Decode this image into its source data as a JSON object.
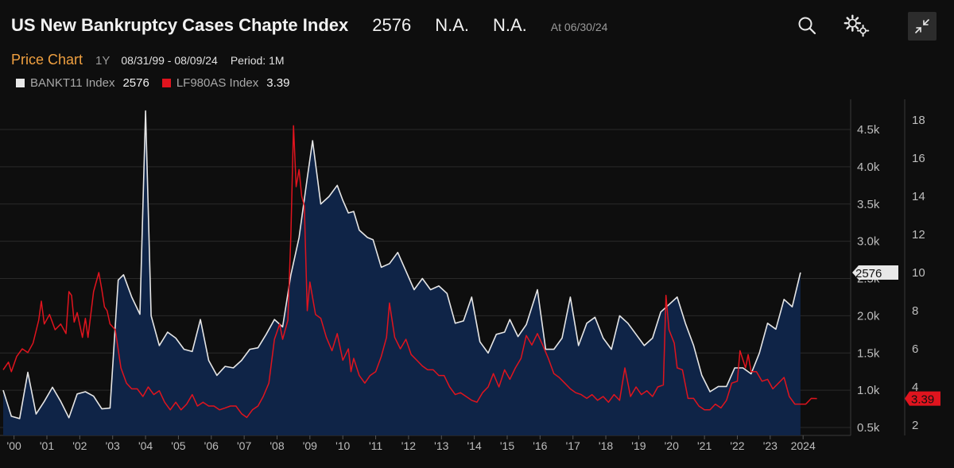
{
  "header": {
    "title": "US New Bankruptcy Cases Chapte Index",
    "last_value": "2576",
    "change1": "N.A.",
    "change2": "N.A.",
    "as_of": "At 06/30/24"
  },
  "toolbar": {
    "chart_type": "Price Chart",
    "period_button": "1Y",
    "date_range": "08/31/99 - 08/09/24",
    "period": "Period: 1M"
  },
  "legend": [
    {
      "name": "BANKT11 Index",
      "value": "2576",
      "color": "#e8e8e8"
    },
    {
      "name": "LF980AS Index",
      "value": "3.39",
      "color": "#e0141e"
    }
  ],
  "colors": {
    "area_fill": "#0f2447",
    "primary_line": "#e6e6e6",
    "secondary_line": "#e0141e",
    "grid": "#2a2a2a",
    "background": "#0e0e0e"
  },
  "chart_data": {
    "type": "line",
    "title": "US New Bankruptcy Cases Chapte Index",
    "x_ticks": [
      "'00",
      "'01",
      "'02",
      "'03",
      "'04",
      "'05",
      "'06",
      "'07",
      "'08",
      "'09",
      "'10",
      "'11",
      "'12",
      "'13",
      "'14",
      "'15",
      "'16",
      "'17",
      "'18",
      "'19",
      "'20",
      "'21",
      "'22",
      "'23",
      "2024"
    ],
    "x_tick_years": [
      2000,
      2001,
      2002,
      2003,
      2004,
      2005,
      2006,
      2007,
      2008,
      2009,
      2010,
      2011,
      2012,
      2013,
      2014,
      2015,
      2016,
      2017,
      2018,
      2019,
      2020,
      2021,
      2022,
      2023,
      2024
    ],
    "xlim": [
      1999.67,
      2024.6
    ],
    "y_left": {
      "ticks": [
        0.5,
        1.0,
        1.5,
        2.0,
        2.5,
        3.0,
        3.5,
        4.0,
        4.5
      ],
      "tick_labels": [
        "0.5k",
        "1.0k",
        "1.5k",
        "2.0k",
        "2.5k",
        "3.0k",
        "3.5k",
        "4.0k",
        "4.5k"
      ],
      "ylim": [
        0.45,
        4.85
      ],
      "unit": "thousands"
    },
    "y_right": {
      "ticks": [
        2,
        4,
        6,
        8,
        10,
        12,
        14,
        16,
        18
      ],
      "ylim": [
        1.8,
        18.9
      ]
    },
    "last_labels": {
      "primary": "2576",
      "secondary": "3.39"
    },
    "series": [
      {
        "name": "BANKT11 Index",
        "axis": "left",
        "style": "area",
        "points": [
          [
            1999.67,
            1.0
          ],
          [
            1999.92,
            0.65
          ],
          [
            2000.17,
            0.62
          ],
          [
            2000.42,
            1.24
          ],
          [
            2000.67,
            0.68
          ],
          [
            2000.92,
            0.85
          ],
          [
            2001.17,
            1.04
          ],
          [
            2001.42,
            0.85
          ],
          [
            2001.67,
            0.63
          ],
          [
            2001.92,
            0.95
          ],
          [
            2002.17,
            0.98
          ],
          [
            2002.42,
            0.92
          ],
          [
            2002.67,
            0.75
          ],
          [
            2002.92,
            0.76
          ],
          [
            2003.17,
            2.48
          ],
          [
            2003.33,
            2.55
          ],
          [
            2003.58,
            2.25
          ],
          [
            2003.83,
            2.02
          ],
          [
            2004.0,
            4.75
          ],
          [
            2004.17,
            2.0
          ],
          [
            2004.42,
            1.6
          ],
          [
            2004.67,
            1.78
          ],
          [
            2004.92,
            1.7
          ],
          [
            2005.17,
            1.55
          ],
          [
            2005.42,
            1.52
          ],
          [
            2005.67,
            1.95
          ],
          [
            2005.92,
            1.4
          ],
          [
            2006.17,
            1.2
          ],
          [
            2006.42,
            1.32
          ],
          [
            2006.67,
            1.3
          ],
          [
            2006.92,
            1.4
          ],
          [
            2007.17,
            1.55
          ],
          [
            2007.42,
            1.57
          ],
          [
            2007.67,
            1.75
          ],
          [
            2007.92,
            1.95
          ],
          [
            2008.17,
            1.85
          ],
          [
            2008.42,
            2.55
          ],
          [
            2008.67,
            3.05
          ],
          [
            2008.92,
            3.85
          ],
          [
            2009.08,
            4.35
          ],
          [
            2009.33,
            3.5
          ],
          [
            2009.58,
            3.6
          ],
          [
            2009.83,
            3.75
          ],
          [
            2010.0,
            3.55
          ],
          [
            2010.17,
            3.38
          ],
          [
            2010.33,
            3.4
          ],
          [
            2010.5,
            3.15
          ],
          [
            2010.75,
            3.05
          ],
          [
            2010.92,
            3.02
          ],
          [
            2011.17,
            2.65
          ],
          [
            2011.42,
            2.7
          ],
          [
            2011.67,
            2.85
          ],
          [
            2011.92,
            2.6
          ],
          [
            2012.17,
            2.35
          ],
          [
            2012.42,
            2.5
          ],
          [
            2012.67,
            2.35
          ],
          [
            2012.92,
            2.4
          ],
          [
            2013.17,
            2.3
          ],
          [
            2013.42,
            1.9
          ],
          [
            2013.67,
            1.93
          ],
          [
            2013.92,
            2.25
          ],
          [
            2014.17,
            1.65
          ],
          [
            2014.42,
            1.5
          ],
          [
            2014.67,
            1.75
          ],
          [
            2014.92,
            1.78
          ],
          [
            2015.08,
            1.95
          ],
          [
            2015.33,
            1.72
          ],
          [
            2015.58,
            1.88
          ],
          [
            2015.92,
            2.35
          ],
          [
            2016.17,
            1.55
          ],
          [
            2016.42,
            1.55
          ],
          [
            2016.67,
            1.7
          ],
          [
            2016.92,
            2.25
          ],
          [
            2017.17,
            1.6
          ],
          [
            2017.42,
            1.9
          ],
          [
            2017.67,
            1.98
          ],
          [
            2017.92,
            1.7
          ],
          [
            2018.17,
            1.55
          ],
          [
            2018.42,
            2.0
          ],
          [
            2018.67,
            1.9
          ],
          [
            2018.92,
            1.75
          ],
          [
            2019.17,
            1.6
          ],
          [
            2019.42,
            1.7
          ],
          [
            2019.67,
            2.05
          ],
          [
            2019.92,
            2.15
          ],
          [
            2020.17,
            2.25
          ],
          [
            2020.42,
            1.9
          ],
          [
            2020.67,
            1.6
          ],
          [
            2020.92,
            1.2
          ],
          [
            2021.17,
            0.98
          ],
          [
            2021.42,
            1.05
          ],
          [
            2021.67,
            1.05
          ],
          [
            2021.92,
            1.3
          ],
          [
            2022.17,
            1.3
          ],
          [
            2022.42,
            1.22
          ],
          [
            2022.67,
            1.5
          ],
          [
            2022.92,
            1.9
          ],
          [
            2023.17,
            1.82
          ],
          [
            2023.42,
            2.22
          ],
          [
            2023.67,
            2.12
          ],
          [
            2023.92,
            2.58
          ]
        ]
      },
      {
        "name": "LF980AS Index",
        "axis": "right",
        "style": "line",
        "points": [
          [
            1999.67,
            4.9
          ],
          [
            1999.83,
            5.3
          ],
          [
            1999.92,
            4.8
          ],
          [
            2000.08,
            5.6
          ],
          [
            2000.25,
            6.0
          ],
          [
            2000.42,
            5.8
          ],
          [
            2000.58,
            6.3
          ],
          [
            2000.75,
            7.5
          ],
          [
            2000.83,
            8.5
          ],
          [
            2000.92,
            7.3
          ],
          [
            2001.08,
            7.8
          ],
          [
            2001.25,
            7.0
          ],
          [
            2001.42,
            7.3
          ],
          [
            2001.58,
            6.8
          ],
          [
            2001.67,
            9.0
          ],
          [
            2001.75,
            8.8
          ],
          [
            2001.83,
            7.4
          ],
          [
            2001.92,
            7.9
          ],
          [
            2002.08,
            6.6
          ],
          [
            2002.17,
            7.6
          ],
          [
            2002.25,
            6.6
          ],
          [
            2002.42,
            9.0
          ],
          [
            2002.58,
            10.0
          ],
          [
            2002.67,
            9.1
          ],
          [
            2002.75,
            8.2
          ],
          [
            2002.83,
            8.0
          ],
          [
            2002.92,
            7.3
          ],
          [
            2003.08,
            7.0
          ],
          [
            2003.25,
            5.0
          ],
          [
            2003.42,
            4.2
          ],
          [
            2003.58,
            3.9
          ],
          [
            2003.75,
            3.9
          ],
          [
            2003.92,
            3.5
          ],
          [
            2004.08,
            4.0
          ],
          [
            2004.25,
            3.6
          ],
          [
            2004.42,
            3.8
          ],
          [
            2004.58,
            3.2
          ],
          [
            2004.75,
            2.8
          ],
          [
            2004.92,
            3.2
          ],
          [
            2005.08,
            2.8
          ],
          [
            2005.25,
            3.1
          ],
          [
            2005.42,
            3.6
          ],
          [
            2005.58,
            3.0
          ],
          [
            2005.75,
            3.2
          ],
          [
            2005.92,
            3.0
          ],
          [
            2006.08,
            3.0
          ],
          [
            2006.25,
            2.8
          ],
          [
            2006.42,
            2.9
          ],
          [
            2006.58,
            3.0
          ],
          [
            2006.75,
            3.0
          ],
          [
            2006.92,
            2.6
          ],
          [
            2007.08,
            2.4
          ],
          [
            2007.25,
            2.8
          ],
          [
            2007.42,
            3.0
          ],
          [
            2007.58,
            3.5
          ],
          [
            2007.75,
            4.2
          ],
          [
            2007.92,
            6.5
          ],
          [
            2008.08,
            7.3
          ],
          [
            2008.17,
            6.5
          ],
          [
            2008.33,
            7.5
          ],
          [
            2008.42,
            12.0
          ],
          [
            2008.5,
            17.7
          ],
          [
            2008.58,
            14.5
          ],
          [
            2008.67,
            15.4
          ],
          [
            2008.75,
            14.0
          ],
          [
            2008.83,
            13.5
          ],
          [
            2008.92,
            8.0
          ],
          [
            2009.0,
            9.5
          ],
          [
            2009.17,
            7.8
          ],
          [
            2009.33,
            7.6
          ],
          [
            2009.5,
            6.6
          ],
          [
            2009.67,
            5.9
          ],
          [
            2009.83,
            6.8
          ],
          [
            2010.0,
            5.4
          ],
          [
            2010.17,
            6.0
          ],
          [
            2010.25,
            4.8
          ],
          [
            2010.33,
            5.5
          ],
          [
            2010.5,
            4.6
          ],
          [
            2010.67,
            4.2
          ],
          [
            2010.83,
            4.6
          ],
          [
            2011.0,
            4.8
          ],
          [
            2011.17,
            5.6
          ],
          [
            2011.33,
            6.6
          ],
          [
            2011.42,
            8.4
          ],
          [
            2011.58,
            6.6
          ],
          [
            2011.75,
            6.0
          ],
          [
            2011.92,
            6.5
          ],
          [
            2012.08,
            5.7
          ],
          [
            2012.25,
            5.4
          ],
          [
            2012.42,
            5.1
          ],
          [
            2012.58,
            4.9
          ],
          [
            2012.75,
            4.9
          ],
          [
            2012.92,
            4.6
          ],
          [
            2013.08,
            4.6
          ],
          [
            2013.25,
            4.0
          ],
          [
            2013.42,
            3.6
          ],
          [
            2013.58,
            3.7
          ],
          [
            2013.75,
            3.5
          ],
          [
            2013.92,
            3.3
          ],
          [
            2014.08,
            3.2
          ],
          [
            2014.25,
            3.7
          ],
          [
            2014.42,
            4.0
          ],
          [
            2014.58,
            4.7
          ],
          [
            2014.75,
            4.0
          ],
          [
            2014.92,
            4.9
          ],
          [
            2015.08,
            4.4
          ],
          [
            2015.25,
            5.0
          ],
          [
            2015.42,
            5.5
          ],
          [
            2015.58,
            6.7
          ],
          [
            2015.75,
            6.2
          ],
          [
            2015.92,
            6.8
          ],
          [
            2016.08,
            6.2
          ],
          [
            2016.25,
            5.5
          ],
          [
            2016.42,
            4.7
          ],
          [
            2016.58,
            4.5
          ],
          [
            2016.75,
            4.2
          ],
          [
            2016.92,
            3.9
          ],
          [
            2017.08,
            3.7
          ],
          [
            2017.25,
            3.6
          ],
          [
            2017.42,
            3.4
          ],
          [
            2017.58,
            3.6
          ],
          [
            2017.75,
            3.3
          ],
          [
            2017.92,
            3.5
          ],
          [
            2018.08,
            3.2
          ],
          [
            2018.25,
            3.6
          ],
          [
            2018.42,
            3.3
          ],
          [
            2018.58,
            5.0
          ],
          [
            2018.75,
            3.5
          ],
          [
            2018.92,
            4.0
          ],
          [
            2019.08,
            3.6
          ],
          [
            2019.25,
            3.8
          ],
          [
            2019.42,
            3.5
          ],
          [
            2019.58,
            4.0
          ],
          [
            2019.75,
            4.1
          ],
          [
            2019.83,
            8.8
          ],
          [
            2019.92,
            7.0
          ],
          [
            2020.08,
            6.3
          ],
          [
            2020.17,
            5.0
          ],
          [
            2020.33,
            4.9
          ],
          [
            2020.5,
            3.4
          ],
          [
            2020.67,
            3.4
          ],
          [
            2020.83,
            3.0
          ],
          [
            2021.0,
            2.8
          ],
          [
            2021.17,
            2.8
          ],
          [
            2021.33,
            3.1
          ],
          [
            2021.5,
            2.9
          ],
          [
            2021.67,
            3.3
          ],
          [
            2021.83,
            4.2
          ],
          [
            2022.0,
            4.3
          ],
          [
            2022.08,
            5.9
          ],
          [
            2022.25,
            5.0
          ],
          [
            2022.33,
            5.7
          ],
          [
            2022.42,
            4.8
          ],
          [
            2022.58,
            4.8
          ],
          [
            2022.75,
            4.3
          ],
          [
            2022.92,
            4.4
          ],
          [
            2023.08,
            3.9
          ],
          [
            2023.25,
            4.2
          ],
          [
            2023.42,
            4.5
          ],
          [
            2023.58,
            3.5
          ],
          [
            2023.75,
            3.1
          ],
          [
            2023.92,
            3.1
          ],
          [
            2024.08,
            3.1
          ],
          [
            2024.25,
            3.4
          ],
          [
            2024.42,
            3.39
          ]
        ]
      }
    ]
  }
}
